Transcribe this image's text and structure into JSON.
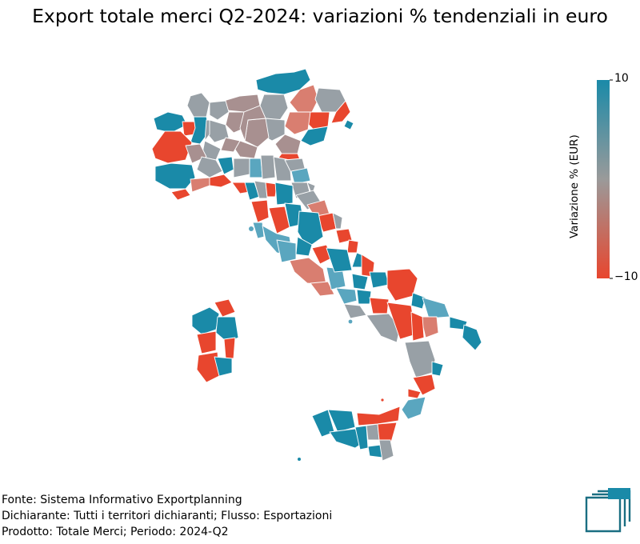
{
  "title": "Export totale merci Q2-2024: variazioni % tendenziali in euro",
  "colorbar": {
    "label": "Variazione % (EUR)",
    "max_label": "10",
    "min_label": "−10",
    "colors": {
      "high": "#1a8aa8",
      "mid": "#9a9a9a",
      "low": "#e8462e"
    },
    "range": [
      -10,
      10
    ]
  },
  "footer": {
    "line1": "Fonte: Sistema Informativo Exportplanning",
    "line2": "Dichiarante: Tutti i territori dichiaranti; Flusso: Esportazioni",
    "line3": "Prodotto: Totale Merci; Periodo: 2024-Q2"
  },
  "logo": {
    "icon": "exportplanning-logo-icon",
    "color": "#1a6e82"
  },
  "map": {
    "country": "Italia",
    "palette": {
      "teal": "#1a8aa8",
      "lightblue": "#5aa6bf",
      "gray": "#98a0a6",
      "taupe": "#a89090",
      "salmon": "#d97e70",
      "red": "#e8462e"
    }
  }
}
